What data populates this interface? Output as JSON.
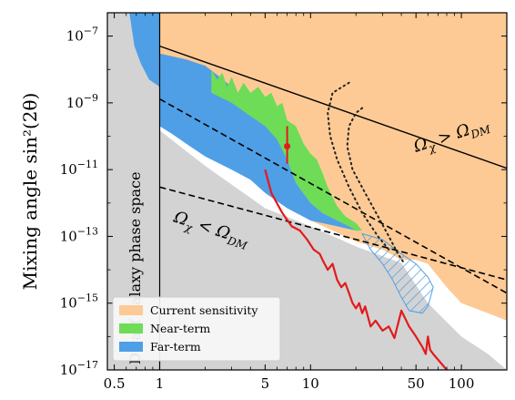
{
  "chart_data": {
    "type": "area",
    "title": "",
    "xlabel": "",
    "ylabel": "Mixing angle sin²(2θ)",
    "x_scale": "log",
    "y_scale": "log",
    "xlim": [
      0.45,
      200
    ],
    "ylim": [
      1e-17,
      5e-07
    ],
    "x_ticks": [
      {
        "value": 0.5,
        "label": "0.5"
      },
      {
        "value": 1,
        "label": "1"
      },
      {
        "value": 5,
        "label": "5"
      },
      {
        "value": 10,
        "label": "10"
      },
      {
        "value": 50,
        "label": "50"
      },
      {
        "value": 100,
        "label": "100"
      }
    ],
    "y_ticks": [
      {
        "value": 1e-07,
        "label": "10",
        "exp": "−7"
      },
      {
        "value": 1e-09,
        "label": "10",
        "exp": "−9"
      },
      {
        "value": 1e-11,
        "label": "10",
        "exp": "−11"
      },
      {
        "value": 1e-13,
        "label": "10",
        "exp": "−13"
      },
      {
        "value": 1e-15,
        "label": "10",
        "exp": "−15"
      },
      {
        "value": 1e-17,
        "label": "10",
        "exp": "−17"
      }
    ],
    "colors": {
      "current": "#fdca95",
      "near": "#6edc56",
      "far": "#4f9fe6",
      "excluded": "#d3d3d3",
      "red": "#e31a1c"
    },
    "regions": {
      "gray": [
        [
          0.45,
          5e-07
        ],
        [
          1,
          5e-07
        ],
        [
          1,
          1.5e-10
        ],
        [
          2,
          1.3e-11
        ],
        [
          5,
          7e-13
        ],
        [
          10,
          2e-13
        ],
        [
          20,
          5e-14
        ],
        [
          40,
          1.6e-14
        ],
        [
          60,
          1e-15
        ],
        [
          100,
          1e-16
        ],
        [
          150,
          3e-17
        ],
        [
          200,
          1e-17
        ],
        [
          0.45,
          1e-17
        ]
      ],
      "orange": [
        [
          1,
          5e-07
        ],
        [
          200,
          5e-07
        ],
        [
          200,
          3e-16
        ],
        [
          150,
          5e-16
        ],
        [
          100,
          1e-15
        ],
        [
          80,
          3e-15
        ],
        [
          60,
          1.5e-14
        ],
        [
          50,
          2e-14
        ],
        [
          40,
          2e-14
        ],
        [
          30,
          4e-14
        ],
        [
          20,
          7e-14
        ],
        [
          15,
          1.3e-13
        ],
        [
          10,
          3e-13
        ],
        [
          7,
          8e-13
        ],
        [
          5,
          2.5e-12
        ],
        [
          3,
          1.2e-11
        ],
        [
          2,
          4e-11
        ],
        [
          1.5,
          1e-10
        ],
        [
          1,
          2e-09
        ]
      ],
      "far": [
        [
          0.63,
          5e-07
        ],
        [
          1,
          5e-07
        ],
        [
          1,
          3e-08
        ],
        [
          1.5,
          2e-08
        ],
        [
          2,
          1.3e-08
        ],
        [
          2.5,
          6e-09
        ],
        [
          3,
          3e-09
        ],
        [
          3.5,
          1.5e-09
        ],
        [
          4,
          1e-09
        ],
        [
          5,
          8e-10
        ],
        [
          6,
          2e-10
        ],
        [
          7,
          2e-11
        ],
        [
          8,
          4e-12
        ],
        [
          10,
          1e-12
        ],
        [
          12,
          5e-13
        ],
        [
          15,
          3e-13
        ],
        [
          18,
          2e-13
        ],
        [
          22,
          1.2e-13
        ],
        [
          20,
          1.5e-13
        ],
        [
          15,
          2e-13
        ],
        [
          10,
          3e-13
        ],
        [
          7,
          7e-13
        ],
        [
          5,
          2e-12
        ],
        [
          4,
          5e-12
        ],
        [
          3,
          1e-11
        ],
        [
          2,
          2.5e-11
        ],
        [
          1.5,
          6e-11
        ],
        [
          1.2,
          1.2e-10
        ],
        [
          1,
          2e-10
        ],
        [
          1,
          3e-09
        ],
        [
          0.85,
          5e-09
        ],
        [
          0.75,
          1.5e-08
        ],
        [
          0.68,
          5e-08
        ]
      ],
      "near": [
        [
          2.2,
          1e-08
        ],
        [
          2.4,
          5e-09
        ],
        [
          2.6,
          8e-09
        ],
        [
          2.8,
          3e-09
        ],
        [
          3,
          6e-09
        ],
        [
          3.3,
          2e-09
        ],
        [
          3.6,
          4e-09
        ],
        [
          4,
          2e-09
        ],
        [
          4.5,
          3e-09
        ],
        [
          5,
          1.5e-09
        ],
        [
          5.5,
          2e-09
        ],
        [
          6,
          8e-10
        ],
        [
          6.5,
          1e-09
        ],
        [
          7,
          3e-10
        ],
        [
          8,
          2e-10
        ],
        [
          9,
          6e-11
        ],
        [
          10,
          3e-11
        ],
        [
          11,
          2e-11
        ],
        [
          12,
          8e-12
        ],
        [
          13,
          3e-12
        ],
        [
          15,
          8e-13
        ],
        [
          17,
          4e-13
        ],
        [
          20,
          2.5e-13
        ],
        [
          22,
          1.5e-13
        ],
        [
          20,
          1.5e-13
        ],
        [
          18,
          2e-13
        ],
        [
          15,
          3e-13
        ],
        [
          12,
          5e-13
        ],
        [
          10,
          1e-12
        ],
        [
          8,
          4e-12
        ],
        [
          7,
          2e-11
        ],
        [
          6,
          8e-11
        ],
        [
          5,
          2e-10
        ],
        [
          4,
          4e-10
        ],
        [
          3,
          1e-09
        ],
        [
          2.2,
          2e-09
        ]
      ]
    },
    "hatched_region": [
      [
        22,
        1.2e-13
      ],
      [
        30,
        8e-14
      ],
      [
        40,
        3e-14
      ],
      [
        50,
        1.5e-14
      ],
      [
        60,
        6e-15
      ],
      [
        65,
        3e-15
      ],
      [
        60,
        8e-16
      ],
      [
        55,
        5e-16
      ],
      [
        45,
        6e-16
      ],
      [
        40,
        1.5e-15
      ],
      [
        35,
        5e-15
      ],
      [
        30,
        1.5e-14
      ],
      [
        25,
        4e-14
      ]
    ],
    "lines": {
      "upper_solid": [
        [
          1,
          5e-08
        ],
        [
          200,
          1.1e-11
        ]
      ],
      "upper_dashed": [
        [
          1,
          1.3e-09
        ],
        [
          200,
          2e-15
        ]
      ],
      "lower_dashed": [
        [
          1,
          3e-12
        ],
        [
          200,
          5e-15
        ]
      ],
      "dwarf_boundary": [
        [
          1,
          5e-07
        ],
        [
          1,
          1e-17
        ]
      ],
      "dotted_1": [
        [
          18,
          4e-09
        ],
        [
          14,
          2e-09
        ],
        [
          13,
          5e-10
        ],
        [
          13.5,
          1e-10
        ],
        [
          15,
          2e-11
        ],
        [
          18,
          3e-12
        ],
        [
          22,
          5e-13
        ],
        [
          28,
          1e-13
        ],
        [
          33,
          4e-14
        ]
      ],
      "dotted_2": [
        [
          22,
          7e-10
        ],
        [
          20,
          5e-10
        ],
        [
          18,
          2e-10
        ],
        [
          17.5,
          5e-11
        ],
        [
          19,
          1e-11
        ],
        [
          23,
          2e-12
        ],
        [
          28,
          4e-13
        ],
        [
          33,
          1e-13
        ],
        [
          38,
          3e-14
        ],
        [
          42,
          1.5e-14
        ]
      ],
      "red_curve": [
        [
          5,
          1e-11
        ],
        [
          5.5,
          2e-12
        ],
        [
          6.5,
          5e-13
        ],
        [
          7.5,
          2e-13
        ],
        [
          8.5,
          1.5e-13
        ],
        [
          9.5,
          8e-14
        ],
        [
          10.5,
          4e-14
        ],
        [
          11.5,
          3e-14
        ],
        [
          12,
          2e-14
        ],
        [
          13,
          1e-14
        ],
        [
          14,
          1.5e-14
        ],
        [
          15,
          5e-15
        ],
        [
          16,
          3e-15
        ],
        [
          17,
          4e-15
        ],
        [
          18,
          2e-15
        ],
        [
          19,
          1e-15
        ],
        [
          20,
          7e-16
        ],
        [
          21,
          1e-15
        ],
        [
          22,
          5e-16
        ],
        [
          23,
          8e-16
        ],
        [
          25,
          2e-16
        ],
        [
          27,
          3e-16
        ],
        [
          30,
          1.5e-16
        ],
        [
          33,
          2e-16
        ],
        [
          36,
          9e-17
        ],
        [
          40,
          6e-16
        ],
        [
          45,
          2e-16
        ],
        [
          50,
          1e-16
        ],
        [
          55,
          5e-17
        ],
        [
          58,
          3e-17
        ],
        [
          60,
          1e-16
        ],
        [
          62,
          4e-17
        ],
        [
          65,
          3e-17
        ],
        [
          80,
          1e-17
        ]
      ]
    },
    "point": {
      "x": 7,
      "y": 5e-11,
      "y_err": [
        1.5e-11,
        2e-10
      ]
    },
    "annotations": [
      {
        "text": "Ω",
        "sub": "χ",
        "mid": " > Ω",
        "sub2": "DM",
        "position": "upper-right along solid line"
      },
      {
        "text": "Ω",
        "sub": "χ",
        "mid": " < Ω",
        "sub2": "DM",
        "position": "center along lower dashed line"
      },
      {
        "text": "Dwarf galaxy phase space",
        "position": "left vertical"
      }
    ],
    "legend": {
      "position": "bottom-left",
      "entries": [
        {
          "label": "Current sensitivity",
          "color": "#fdca95"
        },
        {
          "label": "Near-term",
          "color": "#6edc56"
        },
        {
          "label": "Far-term",
          "color": "#4f9fe6"
        }
      ]
    }
  }
}
